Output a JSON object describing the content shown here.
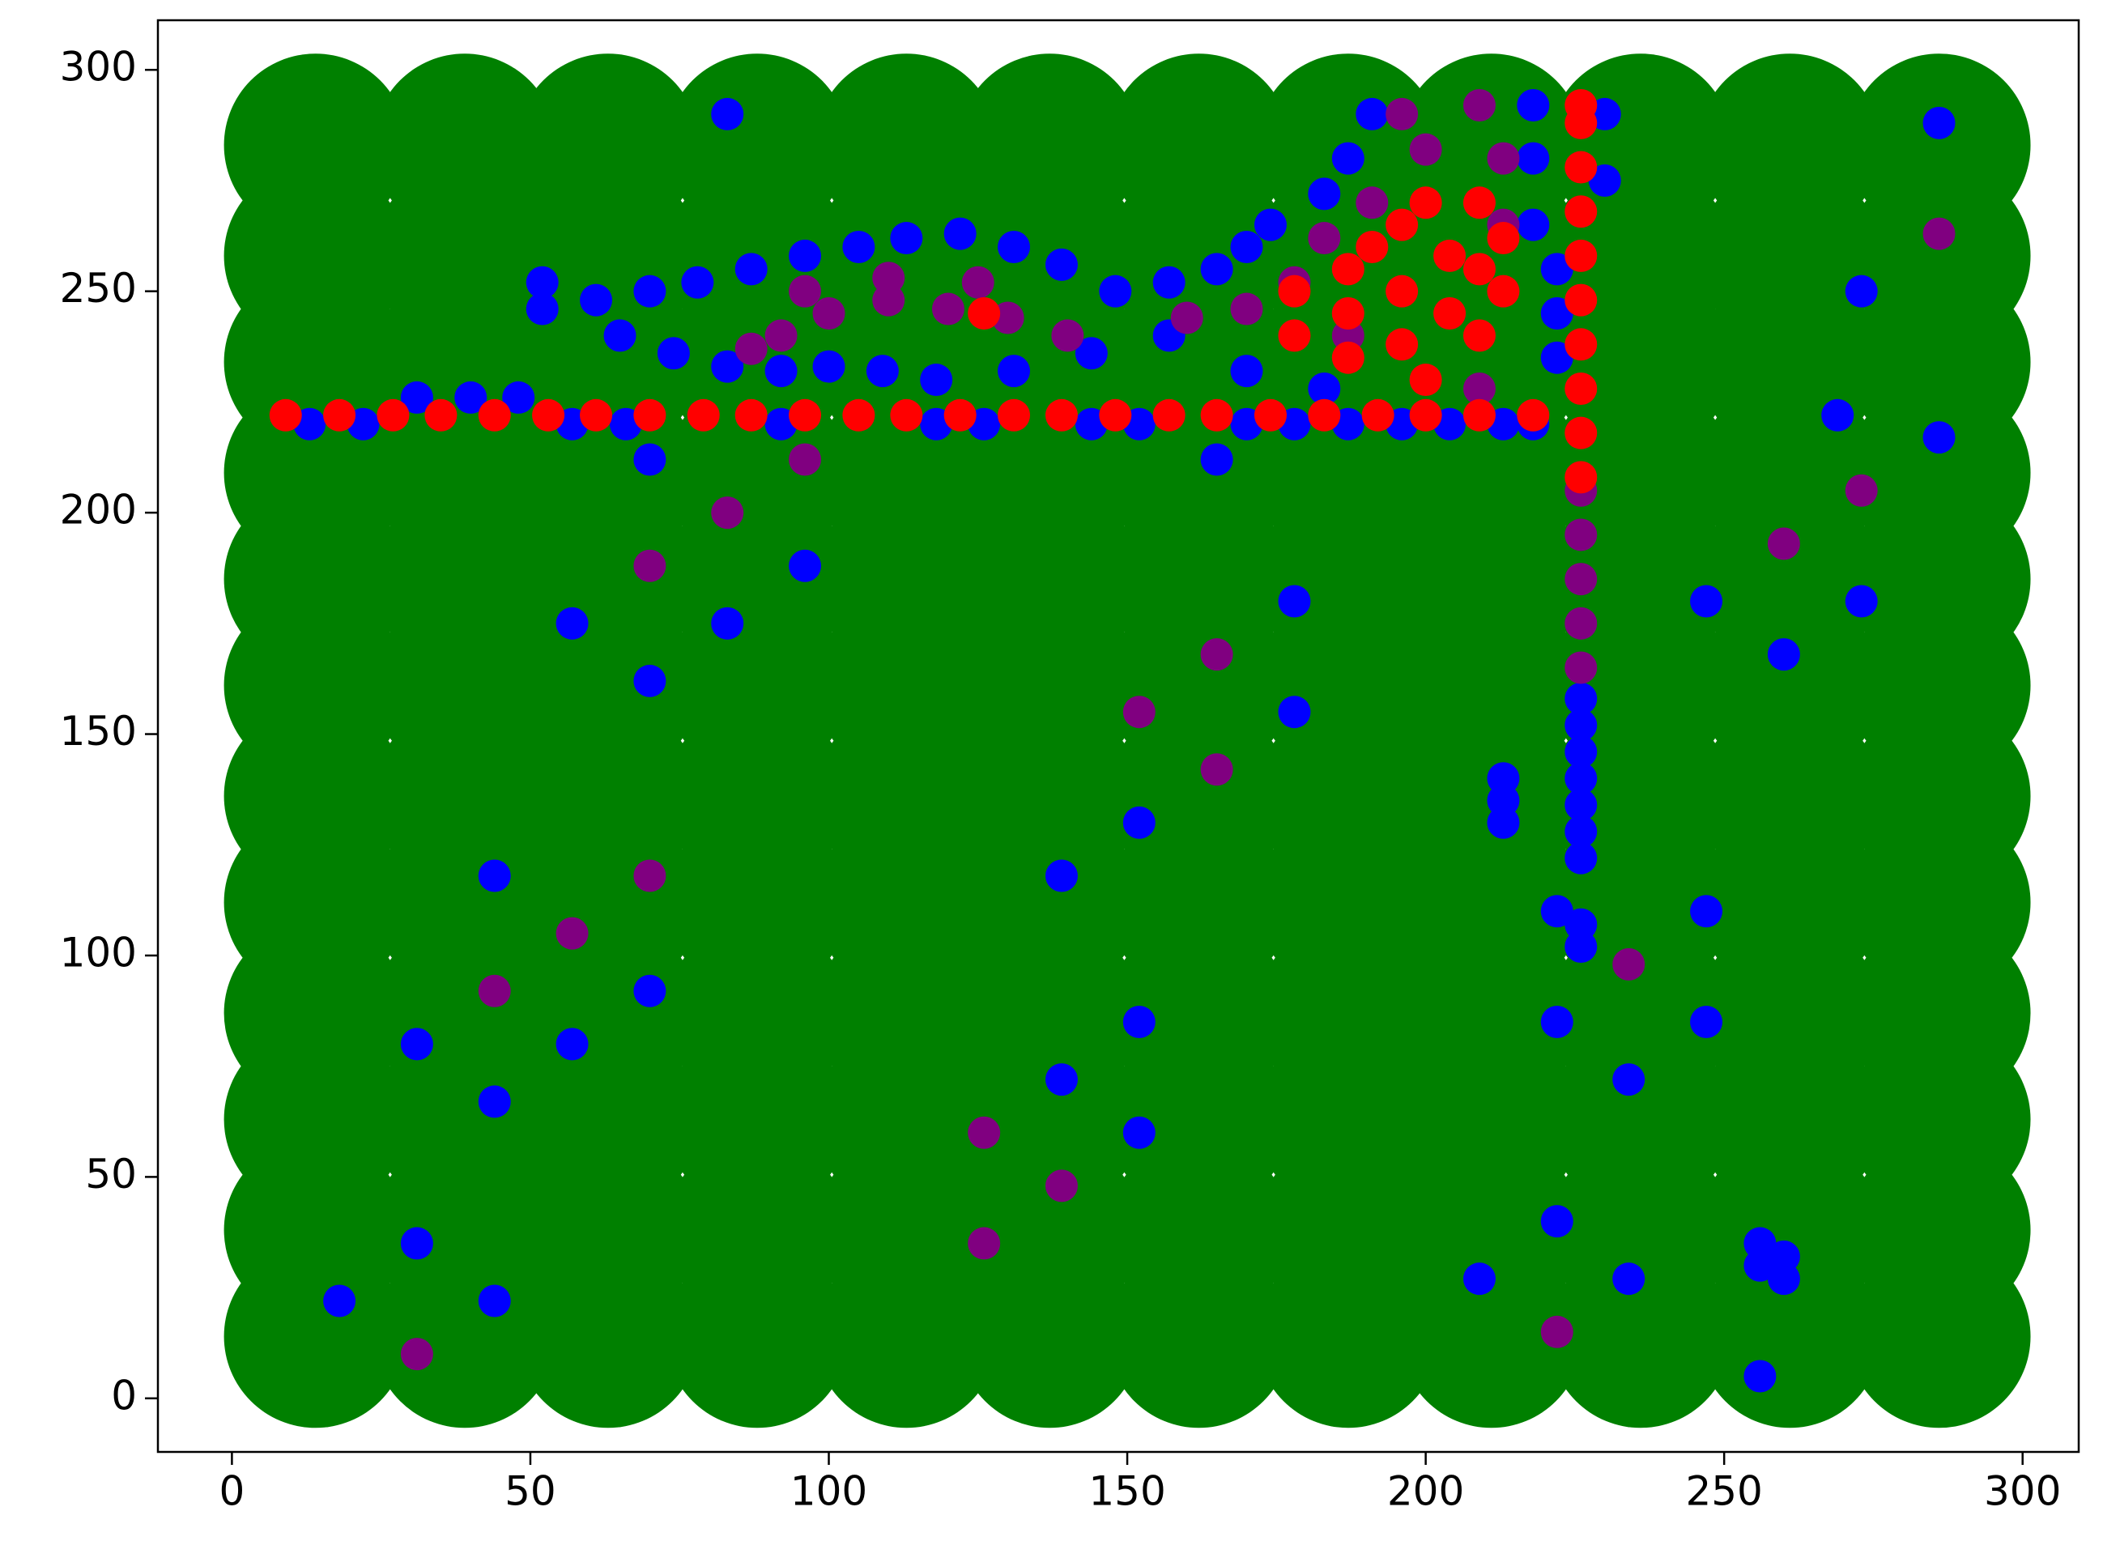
{
  "chart_data": {
    "type": "scatter",
    "xlim": [
      -12.4,
      309.4
    ],
    "ylim": [
      -12.1,
      311.2
    ],
    "xticks": [
      0,
      50,
      100,
      150,
      200,
      250,
      300
    ],
    "yticks": [
      0,
      50,
      100,
      150,
      200,
      250,
      300
    ],
    "grid": false,
    "series": [
      {
        "color": "#008000",
        "x": [
          14,
          39,
          63,
          88,
          113,
          137,
          162,
          187,
          211,
          236,
          261,
          286,
          14,
          39,
          63,
          88,
          113,
          137,
          162,
          187,
          211,
          236,
          261,
          286,
          14,
          39,
          63,
          88,
          113,
          137,
          162,
          187,
          211,
          236,
          261,
          286,
          14,
          39,
          63,
          88,
          113,
          137,
          162,
          187,
          211,
          236,
          261,
          286,
          14,
          39,
          63,
          88,
          113,
          137,
          162,
          187,
          211,
          236,
          261,
          286,
          14,
          39,
          63,
          88,
          113,
          137,
          162,
          187,
          211,
          236,
          261,
          286,
          14,
          39,
          63,
          88,
          113,
          137,
          162,
          187,
          211,
          236,
          261,
          286,
          14,
          39,
          63,
          88,
          113,
          137,
          162,
          187,
          211,
          236,
          261,
          286,
          14,
          39,
          63,
          88,
          113,
          137,
          162,
          187,
          211,
          236,
          261,
          286,
          14,
          39,
          63,
          88,
          113,
          137,
          162,
          187,
          211,
          236,
          261,
          286,
          14,
          39,
          63,
          88,
          113,
          137,
          162,
          187,
          211,
          236,
          261,
          286,
          14,
          39,
          63,
          88,
          113,
          137,
          162,
          187,
          211,
          236,
          261,
          286
        ],
        "y": [
          14,
          14,
          14,
          14,
          14,
          14,
          14,
          14,
          14,
          14,
          14,
          14,
          38,
          38,
          38,
          38,
          38,
          38,
          38,
          38,
          38,
          38,
          38,
          38,
          63,
          63,
          63,
          63,
          63,
          63,
          63,
          63,
          63,
          63,
          63,
          63,
          87,
          87,
          87,
          87,
          87,
          87,
          87,
          87,
          87,
          87,
          87,
          87,
          112,
          112,
          112,
          112,
          112,
          112,
          112,
          112,
          112,
          112,
          112,
          112,
          136,
          136,
          136,
          136,
          136,
          136,
          136,
          136,
          136,
          136,
          136,
          136,
          161,
          161,
          161,
          161,
          161,
          161,
          161,
          161,
          161,
          161,
          161,
          161,
          185,
          185,
          185,
          185,
          185,
          185,
          185,
          185,
          185,
          185,
          185,
          185,
          209,
          209,
          209,
          209,
          209,
          209,
          209,
          209,
          209,
          209,
          209,
          209,
          234,
          234,
          234,
          234,
          234,
          234,
          234,
          234,
          234,
          234,
          234,
          234,
          258,
          258,
          258,
          258,
          258,
          258,
          258,
          258,
          258,
          258,
          258,
          258,
          283,
          283,
          283,
          283,
          283,
          283,
          283,
          283,
          283,
          283,
          283,
          283
        ]
      },
      {
        "color": "#0000ff",
        "x": [
          83,
          57,
          70,
          70,
          83,
          96,
          44,
          31,
          44,
          31,
          18,
          44,
          57,
          70,
          139,
          139,
          152,
          152,
          152,
          178,
          178,
          165,
          213,
          213,
          213,
          222,
          226,
          226,
          222,
          234,
          222,
          209,
          234,
          256,
          256,
          260,
          260,
          256,
          247,
          260,
          247,
          247,
          269,
          273,
          273,
          286,
          286,
          230,
          230,
          13,
          22,
          31,
          40,
          48,
          57,
          66,
          92,
          118,
          126,
          144,
          152,
          170,
          178,
          187,
          196,
          204,
          213,
          218,
          226,
          226,
          226,
          226,
          226,
          226,
          226,
          52,
          52,
          61,
          70,
          78,
          87,
          96,
          105,
          113,
          122,
          131,
          139,
          148,
          157,
          165,
          170,
          174,
          183,
          187,
          191,
          218,
          218,
          218,
          222,
          222,
          222,
          65,
          74,
          83,
          92,
          100,
          109,
          118,
          131,
          144,
          157,
          170,
          183
        ],
        "y": [
          290,
          175,
          212,
          162,
          175,
          188,
          118,
          80,
          67,
          35,
          22,
          22,
          80,
          92,
          118,
          72,
          130,
          85,
          60,
          180,
          155,
          212,
          140,
          135,
          130,
          110,
          107,
          102,
          85,
          72,
          40,
          27,
          27,
          35,
          30,
          32,
          27,
          5,
          180,
          168,
          110,
          85,
          222,
          250,
          180,
          288,
          217,
          290,
          275,
          220,
          220,
          226,
          226,
          226,
          220,
          220,
          220,
          220,
          220,
          220,
          220,
          220,
          220,
          220,
          220,
          220,
          220,
          220,
          122,
          128,
          134,
          140,
          146,
          152,
          158,
          252,
          246,
          248,
          250,
          252,
          255,
          258,
          260,
          262,
          263,
          260,
          256,
          250,
          252,
          255,
          260,
          265,
          272,
          280,
          290,
          292,
          280,
          265,
          255,
          245,
          235,
          240,
          236,
          233,
          232,
          233,
          232,
          230,
          232,
          236,
          240,
          232,
          228
        ]
      },
      {
        "color": "#800080",
        "x": [
          100,
          110,
          120,
          130,
          92,
          140,
          87,
          96,
          110,
          125,
          160,
          170,
          178,
          183,
          191,
          200,
          196,
          209,
          213,
          213,
          187,
          209,
          226,
          226,
          226,
          226,
          226,
          96,
          83,
          70,
          70,
          57,
          44,
          31,
          126,
          126,
          139,
          152,
          165,
          165,
          222,
          234,
          260,
          273,
          286
        ],
        "y": [
          245,
          248,
          246,
          244,
          240,
          240,
          237,
          250,
          253,
          252,
          244,
          246,
          252,
          262,
          270,
          282,
          290,
          292,
          280,
          265,
          240,
          228,
          165,
          175,
          185,
          195,
          205,
          212,
          200,
          188,
          118,
          105,
          92,
          10,
          60,
          35,
          48,
          155,
          168,
          142,
          15,
          98,
          193,
          205,
          263
        ]
      },
      {
        "color": "#ff0000",
        "x": [
          9,
          18,
          27,
          35,
          44,
          53,
          61,
          70,
          79,
          87,
          96,
          105,
          113,
          122,
          131,
          139,
          148,
          157,
          165,
          174,
          183,
          192,
          200,
          209,
          218,
          226,
          226,
          226,
          226,
          226,
          226,
          226,
          226,
          226,
          226,
          126,
          178,
          178,
          187,
          187,
          187,
          196,
          196,
          196,
          200,
          204,
          204,
          209,
          209,
          209,
          213,
          213,
          200,
          191
        ],
        "y": [
          222,
          222,
          222,
          222,
          222,
          222,
          222,
          222,
          222,
          222,
          222,
          222,
          222,
          222,
          222,
          222,
          222,
          222,
          222,
          222,
          222,
          222,
          222,
          222,
          222,
          208,
          218,
          228,
          238,
          248,
          258,
          268,
          278,
          288,
          292,
          245,
          250,
          240,
          255,
          245,
          235,
          265,
          250,
          238,
          270,
          258,
          245,
          270,
          255,
          240,
          250,
          262,
          230,
          260
        ]
      }
    ]
  }
}
